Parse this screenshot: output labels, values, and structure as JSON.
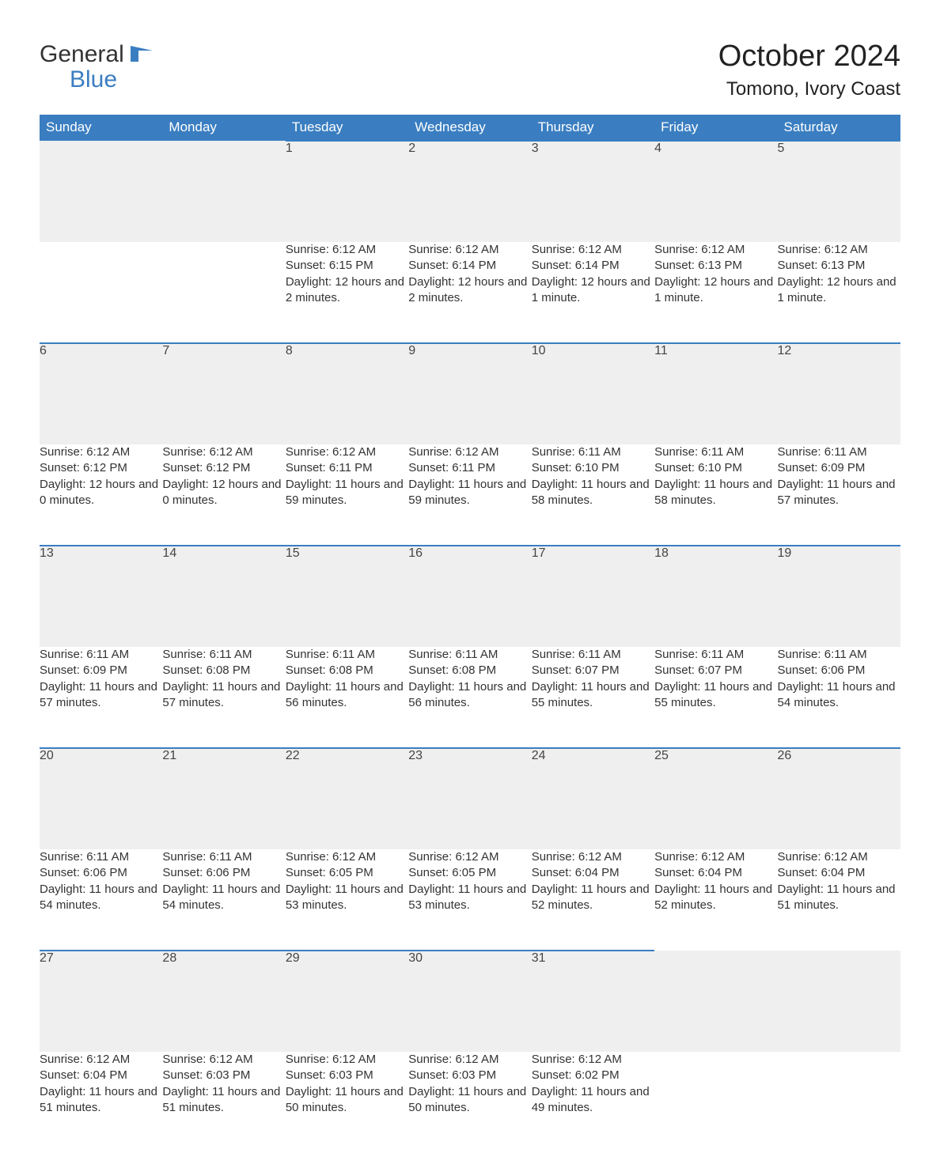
{
  "brand": {
    "line1": "General",
    "line2": "Blue",
    "color_dark": "#333333",
    "color_blue": "#3a7ec1"
  },
  "title": "October 2024",
  "location": "Tomono, Ivory Coast",
  "theme": {
    "header_bg": "#3a7ec1",
    "header_fg": "#ffffff",
    "daynum_bg": "#efefef",
    "rule_color": "#3a7ec1",
    "body_bg": "#ffffff",
    "text_color": "#333333",
    "title_fontsize_pt": 29,
    "location_fontsize_pt": 18,
    "weekday_fontsize_pt": 13,
    "cell_fontsize_pt": 11
  },
  "weekdays": [
    "Sunday",
    "Monday",
    "Tuesday",
    "Wednesday",
    "Thursday",
    "Friday",
    "Saturday"
  ],
  "labels": {
    "sunrise": "Sunrise",
    "sunset": "Sunset",
    "daylight": "Daylight"
  },
  "weeks": [
    [
      null,
      null,
      {
        "day": "1",
        "sunrise": "6:12 AM",
        "sunset": "6:15 PM",
        "daylight": "12 hours and 2 minutes."
      },
      {
        "day": "2",
        "sunrise": "6:12 AM",
        "sunset": "6:14 PM",
        "daylight": "12 hours and 2 minutes."
      },
      {
        "day": "3",
        "sunrise": "6:12 AM",
        "sunset": "6:14 PM",
        "daylight": "12 hours and 1 minute."
      },
      {
        "day": "4",
        "sunrise": "6:12 AM",
        "sunset": "6:13 PM",
        "daylight": "12 hours and 1 minute."
      },
      {
        "day": "5",
        "sunrise": "6:12 AM",
        "sunset": "6:13 PM",
        "daylight": "12 hours and 1 minute."
      }
    ],
    [
      {
        "day": "6",
        "sunrise": "6:12 AM",
        "sunset": "6:12 PM",
        "daylight": "12 hours and 0 minutes."
      },
      {
        "day": "7",
        "sunrise": "6:12 AM",
        "sunset": "6:12 PM",
        "daylight": "12 hours and 0 minutes."
      },
      {
        "day": "8",
        "sunrise": "6:12 AM",
        "sunset": "6:11 PM",
        "daylight": "11 hours and 59 minutes."
      },
      {
        "day": "9",
        "sunrise": "6:12 AM",
        "sunset": "6:11 PM",
        "daylight": "11 hours and 59 minutes."
      },
      {
        "day": "10",
        "sunrise": "6:11 AM",
        "sunset": "6:10 PM",
        "daylight": "11 hours and 58 minutes."
      },
      {
        "day": "11",
        "sunrise": "6:11 AM",
        "sunset": "6:10 PM",
        "daylight": "11 hours and 58 minutes."
      },
      {
        "day": "12",
        "sunrise": "6:11 AM",
        "sunset": "6:09 PM",
        "daylight": "11 hours and 57 minutes."
      }
    ],
    [
      {
        "day": "13",
        "sunrise": "6:11 AM",
        "sunset": "6:09 PM",
        "daylight": "11 hours and 57 minutes."
      },
      {
        "day": "14",
        "sunrise": "6:11 AM",
        "sunset": "6:08 PM",
        "daylight": "11 hours and 57 minutes."
      },
      {
        "day": "15",
        "sunrise": "6:11 AM",
        "sunset": "6:08 PM",
        "daylight": "11 hours and 56 minutes."
      },
      {
        "day": "16",
        "sunrise": "6:11 AM",
        "sunset": "6:08 PM",
        "daylight": "11 hours and 56 minutes."
      },
      {
        "day": "17",
        "sunrise": "6:11 AM",
        "sunset": "6:07 PM",
        "daylight": "11 hours and 55 minutes."
      },
      {
        "day": "18",
        "sunrise": "6:11 AM",
        "sunset": "6:07 PM",
        "daylight": "11 hours and 55 minutes."
      },
      {
        "day": "19",
        "sunrise": "6:11 AM",
        "sunset": "6:06 PM",
        "daylight": "11 hours and 54 minutes."
      }
    ],
    [
      {
        "day": "20",
        "sunrise": "6:11 AM",
        "sunset": "6:06 PM",
        "daylight": "11 hours and 54 minutes."
      },
      {
        "day": "21",
        "sunrise": "6:11 AM",
        "sunset": "6:06 PM",
        "daylight": "11 hours and 54 minutes."
      },
      {
        "day": "22",
        "sunrise": "6:12 AM",
        "sunset": "6:05 PM",
        "daylight": "11 hours and 53 minutes."
      },
      {
        "day": "23",
        "sunrise": "6:12 AM",
        "sunset": "6:05 PM",
        "daylight": "11 hours and 53 minutes."
      },
      {
        "day": "24",
        "sunrise": "6:12 AM",
        "sunset": "6:04 PM",
        "daylight": "11 hours and 52 minutes."
      },
      {
        "day": "25",
        "sunrise": "6:12 AM",
        "sunset": "6:04 PM",
        "daylight": "11 hours and 52 minutes."
      },
      {
        "day": "26",
        "sunrise": "6:12 AM",
        "sunset": "6:04 PM",
        "daylight": "11 hours and 51 minutes."
      }
    ],
    [
      {
        "day": "27",
        "sunrise": "6:12 AM",
        "sunset": "6:04 PM",
        "daylight": "11 hours and 51 minutes."
      },
      {
        "day": "28",
        "sunrise": "6:12 AM",
        "sunset": "6:03 PM",
        "daylight": "11 hours and 51 minutes."
      },
      {
        "day": "29",
        "sunrise": "6:12 AM",
        "sunset": "6:03 PM",
        "daylight": "11 hours and 50 minutes."
      },
      {
        "day": "30",
        "sunrise": "6:12 AM",
        "sunset": "6:03 PM",
        "daylight": "11 hours and 50 minutes."
      },
      {
        "day": "31",
        "sunrise": "6:12 AM",
        "sunset": "6:02 PM",
        "daylight": "11 hours and 49 minutes."
      },
      null,
      null
    ]
  ]
}
